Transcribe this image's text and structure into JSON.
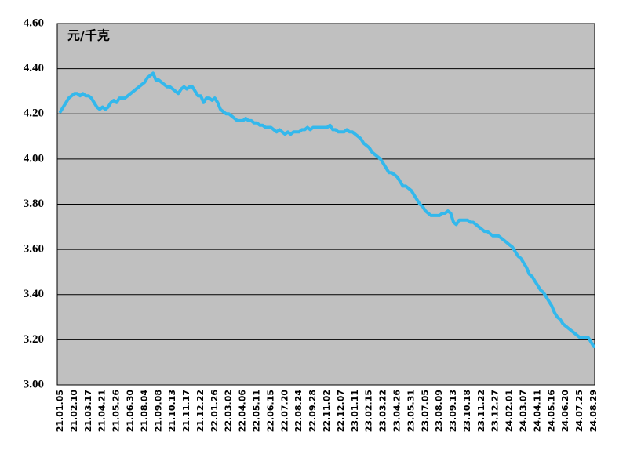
{
  "chart_data": {
    "type": "line",
    "annotation": "元/千克",
    "categories": [
      "21.01.05",
      null,
      null,
      null,
      null,
      "21.02.10",
      null,
      null,
      null,
      null,
      "21.03.17",
      null,
      null,
      null,
      null,
      "21.04.21",
      null,
      null,
      null,
      null,
      "21.05.26",
      null,
      null,
      null,
      null,
      "21.06.30",
      null,
      null,
      null,
      null,
      "21.08.04",
      null,
      null,
      null,
      null,
      "21.09.08",
      null,
      null,
      null,
      null,
      "21.10.13",
      null,
      null,
      null,
      null,
      "21.11.17",
      null,
      null,
      null,
      null,
      "21.12.22",
      null,
      null,
      null,
      null,
      "22.01.26",
      null,
      null,
      null,
      null,
      "22.03.02",
      null,
      null,
      null,
      null,
      "22.04.06",
      null,
      null,
      null,
      null,
      "22.05.11",
      null,
      null,
      null,
      null,
      "22.06.15",
      null,
      null,
      null,
      null,
      "22.07.20",
      null,
      null,
      null,
      null,
      "22.08.24",
      null,
      null,
      null,
      null,
      "22.09.28",
      null,
      null,
      null,
      null,
      "22.11.02",
      null,
      null,
      null,
      null,
      "22.12.07",
      null,
      null,
      null,
      null,
      "23.01.11",
      null,
      null,
      null,
      null,
      "23.02.15",
      null,
      null,
      null,
      null,
      "23.03.22",
      null,
      null,
      null,
      null,
      "23.04.26",
      null,
      null,
      null,
      null,
      "23.05.31",
      null,
      null,
      null,
      null,
      "23.07.05",
      null,
      null,
      null,
      null,
      "23.08.09",
      null,
      null,
      null,
      null,
      "23.09.13",
      null,
      null,
      null,
      null,
      "23.10.18",
      null,
      null,
      null,
      null,
      "23.11.22",
      null,
      null,
      null,
      null,
      "23.12.27",
      null,
      null,
      null,
      null,
      "24.02.01",
      null,
      null,
      null,
      null,
      "24.03.07",
      null,
      null,
      null,
      null,
      "24.04.11",
      null,
      null,
      null,
      null,
      "24.05.16",
      null,
      null,
      null,
      null,
      "24.06.20",
      null,
      null,
      null,
      null,
      "24.07.25",
      null,
      null,
      null,
      null,
      "24.08.29"
    ],
    "values": [
      4.21,
      4.23,
      4.25,
      4.27,
      4.28,
      4.29,
      4.29,
      4.28,
      4.29,
      4.28,
      4.28,
      4.27,
      4.25,
      4.23,
      4.22,
      4.23,
      4.22,
      4.23,
      4.25,
      4.26,
      4.25,
      4.27,
      4.27,
      4.27,
      4.28,
      4.29,
      4.3,
      4.31,
      4.32,
      4.33,
      4.34,
      4.36,
      4.37,
      4.38,
      4.35,
      4.35,
      4.34,
      4.33,
      4.32,
      4.32,
      4.31,
      4.3,
      4.29,
      4.31,
      4.32,
      4.31,
      4.32,
      4.32,
      4.3,
      4.28,
      4.28,
      4.25,
      4.27,
      4.27,
      4.26,
      4.27,
      4.25,
      4.22,
      4.21,
      4.2,
      4.2,
      4.19,
      4.18,
      4.17,
      4.17,
      4.17,
      4.18,
      4.17,
      4.17,
      4.16,
      4.16,
      4.15,
      4.15,
      4.14,
      4.14,
      4.14,
      4.13,
      4.12,
      4.13,
      4.12,
      4.11,
      4.12,
      4.11,
      4.12,
      4.12,
      4.12,
      4.13,
      4.13,
      4.14,
      4.13,
      4.14,
      4.14,
      4.14,
      4.14,
      4.14,
      4.14,
      4.15,
      4.13,
      4.13,
      4.12,
      4.12,
      4.12,
      4.13,
      4.12,
      4.12,
      4.11,
      4.1,
      4.09,
      4.07,
      4.06,
      4.05,
      4.03,
      4.02,
      4.01,
      4.0,
      3.98,
      3.96,
      3.94,
      3.94,
      3.93,
      3.92,
      3.9,
      3.88,
      3.88,
      3.87,
      3.86,
      3.84,
      3.82,
      3.8,
      3.79,
      3.77,
      3.76,
      3.75,
      3.75,
      3.75,
      3.75,
      3.76,
      3.76,
      3.77,
      3.76,
      3.72,
      3.71,
      3.73,
      3.73,
      3.73,
      3.73,
      3.72,
      3.72,
      3.71,
      3.7,
      3.69,
      3.68,
      3.68,
      3.67,
      3.66,
      3.66,
      3.66,
      3.65,
      3.64,
      3.63,
      3.62,
      3.61,
      3.59,
      3.57,
      3.56,
      3.54,
      3.52,
      3.49,
      3.48,
      3.46,
      3.44,
      3.42,
      3.41,
      3.39,
      3.37,
      3.35,
      3.32,
      3.3,
      3.29,
      3.27,
      3.26,
      3.25,
      3.24,
      3.23,
      3.22,
      3.21,
      3.21,
      3.21,
      3.21,
      3.19,
      3.17
    ],
    "color": "#33b8ec",
    "ylim": [
      3.0,
      4.6
    ],
    "yticks": [
      {
        "value": 3.0,
        "label": "3.00"
      },
      {
        "value": 3.2,
        "label": "3.20"
      },
      {
        "value": 3.4,
        "label": "3.40"
      },
      {
        "value": 3.6,
        "label": "3.60"
      },
      {
        "value": 3.8,
        "label": "3.80"
      },
      {
        "value": 4.0,
        "label": "4.00"
      },
      {
        "value": 4.2,
        "label": "4.20"
      },
      {
        "value": 4.4,
        "label": "4.40"
      },
      {
        "value": 4.6,
        "label": "4.60"
      }
    ],
    "grid": true
  }
}
